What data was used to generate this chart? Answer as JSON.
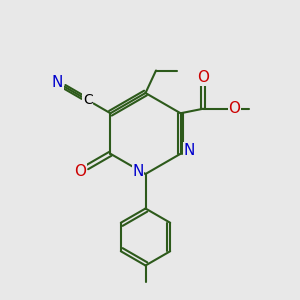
{
  "background_color": "#e8e8e8",
  "bond_color": "#2d5a1b",
  "bond_width": 1.5,
  "atom_colors": {
    "N": "#0000cc",
    "O": "#cc0000",
    "C": "#000000"
  },
  "figsize": [
    3.0,
    3.0
  ],
  "dpi": 100
}
